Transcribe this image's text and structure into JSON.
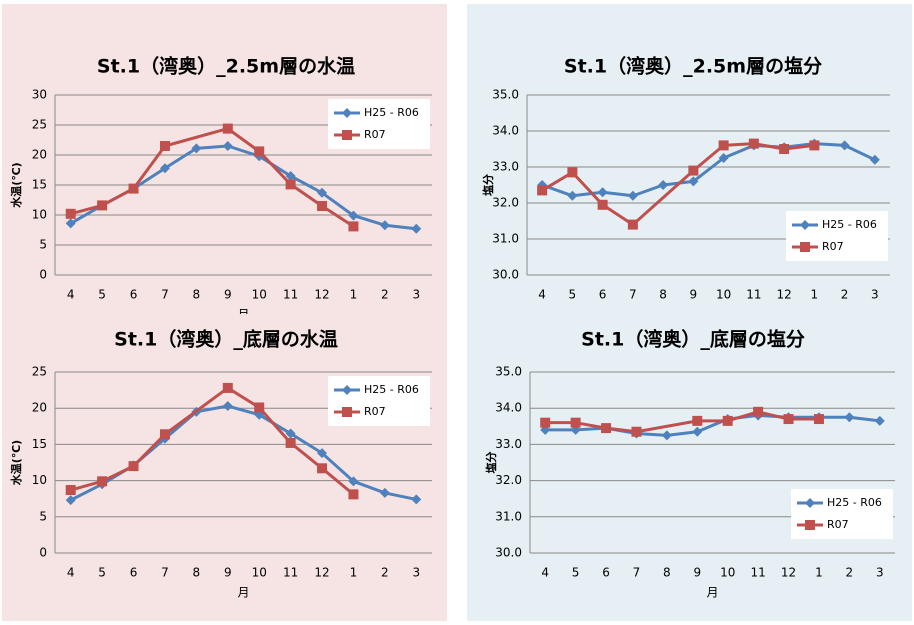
{
  "chart_data": [
    {
      "type": "line",
      "title": "St.1（湾奥）_2.5m層の水温",
      "x_label": "月",
      "y_label": "水温(℃)",
      "background": "#f6e4e4",
      "legend": "upper right",
      "span_gaps": true,
      "categories": [
        "4",
        "5",
        "6",
        "7",
        "8",
        "9",
        "10",
        "11",
        "12",
        "1",
        "2",
        "3"
      ],
      "ylim": [
        0,
        30
      ],
      "yticks": [
        0,
        5,
        10,
        15,
        20,
        25,
        30
      ],
      "grid": true,
      "series": [
        {
          "name": "H25 - R06",
          "color": "#4f81bd",
          "marker": "diamond",
          "values": [
            8.6,
            11.6,
            14.4,
            17.8,
            21.1,
            21.5,
            19.8,
            16.5,
            13.7,
            9.9,
            8.3,
            7.7
          ]
        },
        {
          "name": "R07",
          "color": "#c0504d",
          "marker": "square",
          "values": [
            10.2,
            11.6,
            14.4,
            21.5,
            null,
            24.4,
            20.6,
            15.1,
            11.5,
            8.1,
            null,
            null
          ]
        }
      ]
    },
    {
      "type": "line",
      "title": "St.1（湾奥）_2.5m層の塩分",
      "y_label": "塩分",
      "background": "#e6f0f4",
      "legend": "lower right",
      "span_gaps": true,
      "categories": [
        "4",
        "5",
        "6",
        "7",
        "8",
        "9",
        "10",
        "11",
        "12",
        "1",
        "2",
        "3"
      ],
      "ylim": [
        30,
        35
      ],
      "yticks": [
        {
          "value": 30,
          "label": "30.0"
        },
        {
          "value": 31,
          "label": "31.0"
        },
        {
          "value": 32,
          "label": "32.0"
        },
        {
          "value": 33,
          "label": "33.0"
        },
        {
          "value": 34,
          "label": "34.0"
        },
        {
          "value": 35,
          "label": "35.0"
        }
      ],
      "grid": true,
      "series": [
        {
          "name": "H25 - R06",
          "color": "#4f81bd",
          "marker": "diamond",
          "values": [
            32.5,
            32.2,
            32.3,
            32.2,
            32.5,
            32.6,
            33.25,
            33.6,
            33.55,
            33.65,
            33.6,
            33.2
          ]
        },
        {
          "name": "R07",
          "color": "#c0504d",
          "marker": "square",
          "values": [
            32.35,
            32.85,
            31.95,
            31.4,
            null,
            32.9,
            33.6,
            33.65,
            33.5,
            33.6,
            null,
            null
          ]
        }
      ]
    },
    {
      "type": "line",
      "title": "St.1（湾奥）_底層の水温",
      "x_label": "月",
      "y_label": "水温(℃)",
      "background": "#f6e4e4",
      "legend": "upper right",
      "span_gaps": true,
      "categories": [
        "4",
        "5",
        "6",
        "7",
        "8",
        "9",
        "10",
        "11",
        "12",
        "1",
        "2",
        "3"
      ],
      "ylim": [
        0,
        25
      ],
      "yticks": [
        0,
        5,
        10,
        15,
        20,
        25
      ],
      "grid": true,
      "series": [
        {
          "name": "H25 - R06",
          "color": "#4f81bd",
          "marker": "diamond",
          "values": [
            7.3,
            9.5,
            12.1,
            15.8,
            19.5,
            20.3,
            19.1,
            16.5,
            13.8,
            9.9,
            8.3,
            7.4
          ]
        },
        {
          "name": "R07",
          "color": "#c0504d",
          "marker": "square",
          "values": [
            8.7,
            9.9,
            12.0,
            16.4,
            null,
            22.8,
            20.1,
            15.2,
            11.7,
            8.1,
            null,
            null
          ]
        }
      ]
    },
    {
      "type": "line",
      "title": "St.1（湾奥）_底層の塩分",
      "x_label": "月",
      "y_label": "塩分",
      "background": "#e6f0f4",
      "legend": "lower right",
      "span_gaps": true,
      "categories": [
        "4",
        "5",
        "6",
        "7",
        "8",
        "9",
        "10",
        "11",
        "12",
        "1",
        "2",
        "3"
      ],
      "ylim": [
        30,
        35
      ],
      "yticks": [
        {
          "value": 30,
          "label": "30.0"
        },
        {
          "value": 31,
          "label": "31.0"
        },
        {
          "value": 32,
          "label": "32.0"
        },
        {
          "value": 33,
          "label": "33.0"
        },
        {
          "value": 34,
          "label": "34.0"
        },
        {
          "value": 35,
          "label": "35.0"
        }
      ],
      "grid": true,
      "series": [
        {
          "name": "H25 - R06",
          "color": "#4f81bd",
          "marker": "diamond",
          "values": [
            33.4,
            33.4,
            33.45,
            33.3,
            33.25,
            33.35,
            33.7,
            33.8,
            33.75,
            33.75,
            33.75,
            33.65
          ]
        },
        {
          "name": "R07",
          "color": "#c0504d",
          "marker": "square",
          "values": [
            33.6,
            33.6,
            33.45,
            33.35,
            null,
            33.65,
            33.65,
            33.9,
            33.7,
            33.7,
            null,
            null
          ]
        }
      ]
    }
  ]
}
